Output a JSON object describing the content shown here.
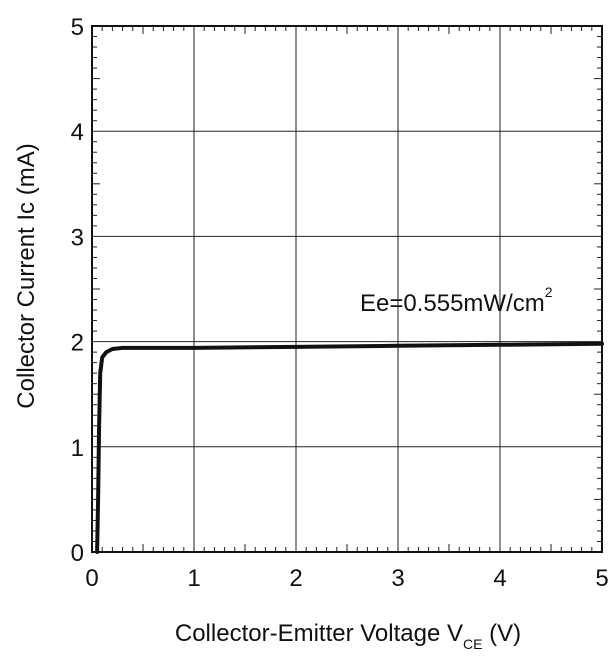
{
  "chart_data": {
    "type": "line",
    "title": "",
    "xlabel": {
      "main": "Collector-Emitter Voltage V",
      "subscript": "CE",
      "suffix": " (V)"
    },
    "ylabel": "Collector Current Ic (mA)",
    "xlim": [
      0,
      5
    ],
    "ylim": [
      0,
      5
    ],
    "xticks": [
      "0",
      "1",
      "2",
      "3",
      "4",
      "5"
    ],
    "yticks": [
      "0",
      "1",
      "2",
      "3",
      "4",
      "5"
    ],
    "grid": true,
    "annotations": [
      {
        "text": "Ee=0.555mW/cm",
        "superscript": "2"
      }
    ],
    "series": [
      {
        "x": [
          0.05,
          0.06,
          0.07,
          0.08,
          0.1,
          0.14,
          0.2,
          0.3,
          0.5,
          1.0,
          2.0,
          3.0,
          4.0,
          5.0
        ],
        "y": [
          0.0,
          0.5,
          1.2,
          1.7,
          1.85,
          1.9,
          1.93,
          1.94,
          1.94,
          1.94,
          1.95,
          1.96,
          1.97,
          1.98
        ]
      }
    ]
  }
}
